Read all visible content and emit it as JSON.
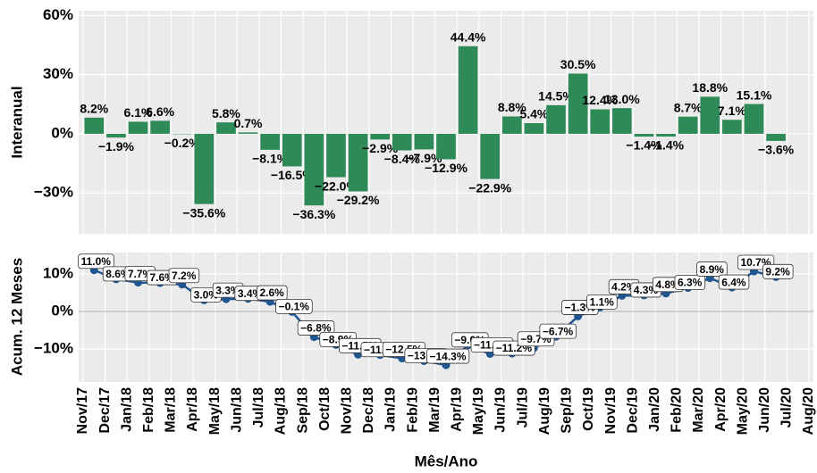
{
  "chart_data": [
    {
      "type": "bar",
      "y_label": "Interanual",
      "color": "#2e8b57",
      "grid": true,
      "categories": [
        "Nov/17",
        "Dec/17",
        "Jan/18",
        "Feb/18",
        "Mar/18",
        "Apr/18",
        "May/18",
        "Jun/18",
        "Jul/18",
        "Aug/18",
        "Sep/18",
        "Oct/18",
        "Nov/18",
        "Dec/18",
        "Jan/19",
        "Feb/19",
        "Mar/19",
        "Apr/19",
        "May/19",
        "Jun/19",
        "Jul/19",
        "Aug/19",
        "Sep/19",
        "Oct/19",
        "Nov/19",
        "Dec/19",
        "Jan/20",
        "Feb/20",
        "Mar/20",
        "Apr/20",
        "May/20",
        "Jun/20",
        "Jul/20",
        "Aug/20"
      ],
      "values": [
        null,
        8.2,
        -1.9,
        6.1,
        6.6,
        -0.2,
        -35.6,
        5.8,
        0.7,
        -8.1,
        -16.5,
        -36.3,
        -22.0,
        -29.2,
        -2.9,
        -8.4,
        -7.9,
        -12.9,
        44.4,
        -22.9,
        8.8,
        5.4,
        14.5,
        30.5,
        12.4,
        13.0,
        -1.4,
        -1.4,
        8.7,
        18.8,
        7.1,
        15.1,
        -3.6,
        null
      ],
      "value_labels": [
        null,
        "8.2%",
        "−1.9%",
        "6.1%",
        "6.6%",
        "−0.2%",
        "−35.6%",
        "5.8%",
        "0.7%",
        "−8.1%",
        "−16.5%",
        "−36.3%",
        "−22.0%",
        "−29.2%",
        "−2.9%",
        "−8.4%",
        "−7.9%",
        "−12.9%",
        "44.4%",
        "−22.9%",
        "8.8%",
        "5.4%",
        "14.5%",
        "30.5%",
        "12.4%",
        "13.0%",
        "−1.4%",
        "−1.4%",
        "8.7%",
        "18.8%",
        "7.1%",
        "15.1%",
        "−3.6%",
        null
      ],
      "ylim": [
        -50.7,
        62.4
      ],
      "yticks": [
        {
          "value": 60,
          "label": "60%"
        },
        {
          "value": 30,
          "label": "30%"
        },
        {
          "value": 0,
          "label": "0%"
        },
        {
          "value": -30,
          "label": "−30%"
        }
      ]
    },
    {
      "type": "line",
      "y_label": "Acum. 12 Meses",
      "x_label": "Mês/Ano",
      "color": "#1f5591",
      "grid": true,
      "categories": [
        "Nov/17",
        "Dec/17",
        "Jan/18",
        "Feb/18",
        "Mar/18",
        "Apr/18",
        "May/18",
        "Jun/18",
        "Jul/18",
        "Aug/18",
        "Sep/18",
        "Oct/18",
        "Nov/18",
        "Dec/18",
        "Jan/19",
        "Feb/19",
        "Mar/19",
        "Apr/19",
        "May/19",
        "Jun/19",
        "Jul/19",
        "Aug/19",
        "Sep/19",
        "Oct/19",
        "Nov/19",
        "Dec/19",
        "Jan/20",
        "Feb/20",
        "Mar/20",
        "Apr/20",
        "May/20",
        "Jun/20",
        "Jul/20",
        "Aug/20"
      ],
      "values": [
        null,
        11.0,
        8.6,
        7.7,
        7.6,
        7.2,
        3.0,
        3.3,
        3.4,
        2.6,
        -0.1,
        -6.8,
        -8.9,
        -11.5,
        -11.6,
        -12.5,
        -13.2,
        -14.3,
        -9.0,
        -11.3,
        -11.2,
        -9.7,
        -6.7,
        -1.3,
        1.1,
        4.2,
        4.3,
        4.8,
        6.3,
        8.9,
        6.4,
        10.7,
        9.2,
        null
      ],
      "value_labels": [
        null,
        "11.0%",
        "8.6%",
        "7.7%",
        "7.6%",
        "7.2%",
        "3.0%",
        "3.3%",
        "3.4%",
        "2.6%",
        "−0.1%",
        "−6.8%",
        "−8.9%",
        "−11.5%",
        "−11.6%",
        "−12.5%",
        "−13.2%",
        "−14.3%",
        "−9.0%",
        "−11.3%",
        "−11.2%",
        "−9.7%",
        "−6.7%",
        "−1.3%",
        "1.1%",
        "4.2%",
        "4.3%",
        "4.8%",
        "6.3%",
        "8.9%",
        "6.4%",
        "10.7%",
        "9.2%",
        null
      ],
      "ylim": [
        -18.8,
        15.7
      ],
      "yticks": [
        {
          "value": 10,
          "label": "10%"
        },
        {
          "value": 0,
          "label": "0%"
        },
        {
          "value": -10,
          "label": "−10%"
        }
      ]
    }
  ]
}
